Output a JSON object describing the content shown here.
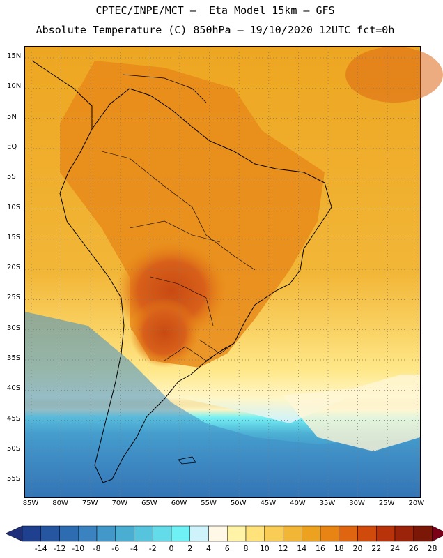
{
  "title_line1": "CPTEC/INPE/MCT –  Eta Model 15km – GFS",
  "title_line2": "Absolute Temperature (C) 850hPa – 19/10/2020 12UTC fct=0h",
  "lat_labels": [
    "15N",
    "10N",
    "5N",
    "EQ",
    "5S",
    "10S",
    "15S",
    "20S",
    "25S",
    "30S",
    "35S",
    "40S",
    "45S",
    "50S",
    "55S"
  ],
  "lat_values": [
    15,
    10,
    5,
    0,
    -5,
    -10,
    -15,
    -20,
    -25,
    -30,
    -35,
    -40,
    -45,
    -50,
    -55
  ],
  "lon_labels": [
    "85W",
    "80W",
    "75W",
    "70W",
    "65W",
    "60W",
    "55W",
    "50W",
    "45W",
    "40W",
    "35W",
    "30W",
    "25W",
    "20W"
  ],
  "lon_values": [
    -85,
    -80,
    -75,
    -70,
    -65,
    -60,
    -55,
    -50,
    -45,
    -40,
    -35,
    -30,
    -25,
    -20
  ],
  "colorbar": {
    "labels": [
      "-14",
      "-12",
      "-10",
      "-8",
      "-6",
      "-4",
      "-2",
      "0",
      "2",
      "4",
      "6",
      "8",
      "10",
      "12",
      "14",
      "16",
      "18",
      "20",
      "22",
      "24",
      "26",
      "28"
    ],
    "colors": [
      "#1f3f8f",
      "#2656a0",
      "#2e6cb1",
      "#3a83c0",
      "#4298c9",
      "#4aaed3",
      "#57c4de",
      "#64dbe9",
      "#6ff0f4",
      "#cff3fb",
      "#fff8e6",
      "#fff3a8",
      "#ffe27a",
      "#f9cd55",
      "#f2b637",
      "#eca21e",
      "#e88413",
      "#e06510",
      "#d04a0c",
      "#b8320a",
      "#9a2309",
      "#7b1707"
    ],
    "left_arrow_color": "#1f2f7a",
    "right_arrow_color": "#7a0018"
  }
}
